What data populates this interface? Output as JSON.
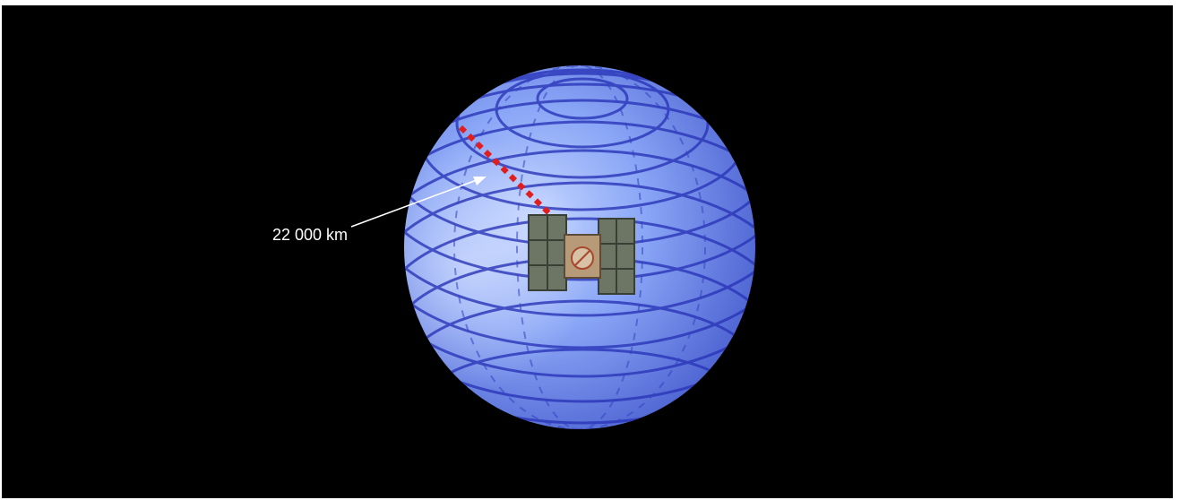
{
  "annotation": {
    "distance_label": "22 000 km"
  },
  "colors": {
    "background": "#000000",
    "globe_light": "#aac4ff",
    "globe_mid": "#6f8ff2",
    "globe_dark": "#3f55c8",
    "grid_lines": "#2a35b8",
    "orbit_marker": "#e01e1e",
    "pointer_arrow": "#ffffff"
  },
  "icons": {
    "globe": "earth-globe-icon",
    "satellite": "satellite-icon"
  }
}
